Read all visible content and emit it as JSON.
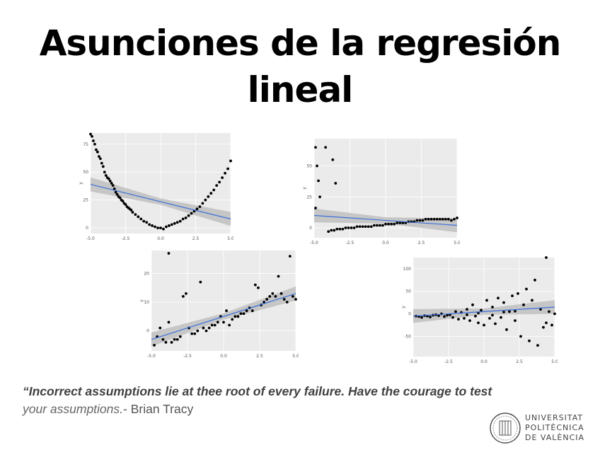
{
  "title": {
    "line1": "Asunciones de la regresión",
    "line2": "lineal"
  },
  "quote": {
    "part1": "“Incorrect assumptions lie at thee root of every failure. Have the courage to test",
    "part2": "your assumptions.",
    "part3": "- Brian Tracy"
  },
  "logo": {
    "line1": "UNIVERSITAT",
    "line2": "POLITÈCNICA",
    "line3": "DE VALÈNCIA",
    "icon": "upv-seal-icon"
  },
  "colors": {
    "fit_line": "#3a6fd8",
    "panel_bg": "#ebebeb",
    "band": "#bdbdbd",
    "points": "#000000"
  },
  "chart_data": [
    {
      "type": "scatter",
      "title": "",
      "xlabel": "",
      "ylabel": "y",
      "xlim": [
        -5,
        5
      ],
      "ylim": [
        -5,
        85
      ],
      "xticks": [
        "-5.0",
        "-2.5",
        "0.0",
        "2.5",
        "5.0"
      ],
      "yticks": [
        "0",
        "25",
        "50",
        "75"
      ],
      "fit": {
        "x": [
          -5,
          5
        ],
        "y": [
          39,
          8
        ]
      },
      "points": [
        [
          -5,
          84
        ],
        [
          -4.9,
          82
        ],
        [
          -4.8,
          78
        ],
        [
          -4.7,
          75
        ],
        [
          -4.6,
          70
        ],
        [
          -4.5,
          68
        ],
        [
          -4.4,
          64
        ],
        [
          -4.3,
          62
        ],
        [
          -4.2,
          58
        ],
        [
          -4.1,
          55
        ],
        [
          -4,
          50
        ],
        [
          -3.9,
          47
        ],
        [
          -3.8,
          45
        ],
        [
          -3.7,
          44
        ],
        [
          -3.6,
          42
        ],
        [
          -3.5,
          40
        ],
        [
          -3.4,
          38
        ],
        [
          -3.3,
          35
        ],
        [
          -3.2,
          32
        ],
        [
          -3.1,
          30
        ],
        [
          -3,
          28
        ],
        [
          -2.9,
          27
        ],
        [
          -2.8,
          25
        ],
        [
          -2.7,
          24
        ],
        [
          -2.6,
          22
        ],
        [
          -2.5,
          21
        ],
        [
          -2.4,
          19
        ],
        [
          -2.3,
          18
        ],
        [
          -2.2,
          17
        ],
        [
          -2.1,
          16
        ],
        [
          -2,
          14
        ],
        [
          -1.8,
          12
        ],
        [
          -1.6,
          10
        ],
        [
          -1.4,
          8
        ],
        [
          -1.2,
          6
        ],
        [
          -1,
          5
        ],
        [
          -0.8,
          3
        ],
        [
          -0.6,
          2
        ],
        [
          -0.4,
          1
        ],
        [
          -0.2,
          0
        ],
        [
          0,
          0
        ],
        [
          0.2,
          -1
        ],
        [
          0.4,
          1
        ],
        [
          0.6,
          2
        ],
        [
          0.8,
          3
        ],
        [
          1,
          4
        ],
        [
          1.2,
          5
        ],
        [
          1.4,
          6
        ],
        [
          1.6,
          8
        ],
        [
          1.8,
          9
        ],
        [
          2,
          11
        ],
        [
          2.2,
          13
        ],
        [
          2.4,
          15
        ],
        [
          2.6,
          17
        ],
        [
          2.8,
          19
        ],
        [
          3,
          22
        ],
        [
          3.2,
          25
        ],
        [
          3.4,
          28
        ],
        [
          3.6,
          31
        ],
        [
          3.8,
          34
        ],
        [
          4,
          38
        ],
        [
          4.2,
          41
        ],
        [
          4.4,
          45
        ],
        [
          4.6,
          49
        ],
        [
          4.8,
          53
        ],
        [
          5,
          60
        ]
      ]
    },
    {
      "type": "scatter",
      "title": "",
      "xlabel": "",
      "ylabel": "y",
      "xlim": [
        -5,
        5
      ],
      "ylim": [
        -8,
        72
      ],
      "xticks": [
        "-5.0",
        "-2.5",
        "0.0",
        "2.5",
        "5.0"
      ],
      "yticks": [
        "0",
        "25",
        "50"
      ],
      "fit": {
        "x": [
          -5,
          5
        ],
        "y": [
          10,
          2
        ]
      },
      "points": [
        [
          -4.9,
          65
        ],
        [
          -4.8,
          50
        ],
        [
          -4.7,
          38
        ],
        [
          -4.6,
          25
        ],
        [
          -4.9,
          16
        ],
        [
          -4.2,
          65
        ],
        [
          -3.7,
          55
        ],
        [
          -3.5,
          36
        ],
        [
          -4,
          -3
        ],
        [
          -3.8,
          -2
        ],
        [
          -3.6,
          -2
        ],
        [
          -3.4,
          -1
        ],
        [
          -3.2,
          -1
        ],
        [
          -3,
          -1
        ],
        [
          -2.8,
          0
        ],
        [
          -2.6,
          0
        ],
        [
          -2.4,
          0
        ],
        [
          -2.2,
          0
        ],
        [
          -2,
          1
        ],
        [
          -1.8,
          1
        ],
        [
          -1.6,
          1
        ],
        [
          -1.4,
          1
        ],
        [
          -1.2,
          1
        ],
        [
          -1,
          1
        ],
        [
          -0.8,
          2
        ],
        [
          -0.6,
          2
        ],
        [
          -0.4,
          2
        ],
        [
          -0.2,
          2
        ],
        [
          0,
          3
        ],
        [
          0.2,
          3
        ],
        [
          0.4,
          3
        ],
        [
          0.6,
          3
        ],
        [
          0.8,
          4
        ],
        [
          1,
          4
        ],
        [
          1.2,
          4
        ],
        [
          1.4,
          4
        ],
        [
          1.6,
          5
        ],
        [
          1.8,
          5
        ],
        [
          2,
          5
        ],
        [
          2.2,
          6
        ],
        [
          2.4,
          6
        ],
        [
          2.6,
          6
        ],
        [
          2.8,
          7
        ],
        [
          3,
          7
        ],
        [
          3.2,
          7
        ],
        [
          3.4,
          7
        ],
        [
          3.6,
          7
        ],
        [
          3.8,
          7
        ],
        [
          4,
          7
        ],
        [
          4.2,
          7
        ],
        [
          4.4,
          7
        ],
        [
          4.6,
          6
        ],
        [
          4.8,
          7
        ],
        [
          5,
          8
        ]
      ]
    },
    {
      "type": "scatter",
      "title": "",
      "xlabel": "",
      "ylabel": "y",
      "xlim": [
        -5,
        5
      ],
      "ylim": [
        -7,
        28
      ],
      "xticks": [
        "-5.0",
        "-2.5",
        "0.0",
        "2.5",
        "5.0"
      ],
      "yticks": [
        "0",
        "10",
        "20"
      ],
      "fit": {
        "x": [
          -5,
          5
        ],
        "y": [
          -3,
          13
        ]
      },
      "points": [
        [
          -4.8,
          -5
        ],
        [
          -4.6,
          -2
        ],
        [
          -4.4,
          1
        ],
        [
          -4.2,
          -3
        ],
        [
          -4,
          -4
        ],
        [
          -3.8,
          3
        ],
        [
          -3.6,
          -4
        ],
        [
          -3.4,
          -3
        ],
        [
          -3.2,
          -3
        ],
        [
          -3,
          -2
        ],
        [
          -2.8,
          12
        ],
        [
          -2.6,
          13
        ],
        [
          -2.4,
          1
        ],
        [
          -2.2,
          -1
        ],
        [
          -2,
          -1
        ],
        [
          -1.8,
          0
        ],
        [
          -1.6,
          17
        ],
        [
          -1.4,
          1
        ],
        [
          -1.2,
          0
        ],
        [
          -1,
          1
        ],
        [
          -0.8,
          2
        ],
        [
          -0.6,
          2
        ],
        [
          -0.4,
          3
        ],
        [
          -0.2,
          5
        ],
        [
          0,
          3
        ],
        [
          0.2,
          7
        ],
        [
          0.4,
          2
        ],
        [
          0.6,
          4
        ],
        [
          0.8,
          5
        ],
        [
          1,
          5
        ],
        [
          1.2,
          6
        ],
        [
          1.4,
          6
        ],
        [
          1.6,
          7
        ],
        [
          1.8,
          8
        ],
        [
          2,
          7
        ],
        [
          2.2,
          16
        ],
        [
          2.4,
          15
        ],
        [
          2.6,
          9
        ],
        [
          2.8,
          10
        ],
        [
          3,
          11
        ],
        [
          3.2,
          12
        ],
        [
          3.4,
          13
        ],
        [
          3.6,
          12
        ],
        [
          3.8,
          19
        ],
        [
          4,
          13
        ],
        [
          4.2,
          11
        ],
        [
          4.4,
          10
        ],
        [
          4.6,
          26
        ],
        [
          4.8,
          12
        ],
        [
          5,
          11
        ],
        [
          -3.8,
          27
        ]
      ]
    },
    {
      "type": "scatter",
      "title": "",
      "xlabel": "",
      "ylabel": "y",
      "xlim": [
        -5,
        5
      ],
      "ylim": [
        -95,
        125
      ],
      "xticks": [
        "-5.0",
        "-2.5",
        "0.0",
        "2.5",
        "5.0"
      ],
      "yticks": [
        "-50",
        "0",
        "50",
        "100"
      ],
      "fit": {
        "x": [
          -5,
          5
        ],
        "y": [
          -5,
          15
        ]
      },
      "points": [
        [
          -4.8,
          -5
        ],
        [
          -4.6,
          -6
        ],
        [
          -4.4,
          -8
        ],
        [
          -4.2,
          -4
        ],
        [
          -4,
          -5
        ],
        [
          -3.8,
          -7
        ],
        [
          -3.6,
          -3
        ],
        [
          -3.4,
          -2
        ],
        [
          -3.2,
          -4
        ],
        [
          -3,
          0
        ],
        [
          -2.8,
          -6
        ],
        [
          -2.6,
          -3
        ],
        [
          -2.4,
          -2
        ],
        [
          -2.2,
          -8
        ],
        [
          -2,
          5
        ],
        [
          -1.8,
          -12
        ],
        [
          -1.6,
          3
        ],
        [
          -1.4,
          -10
        ],
        [
          -1.2,
          10
        ],
        [
          -1,
          -15
        ],
        [
          -0.8,
          20
        ],
        [
          -0.6,
          -5
        ],
        [
          -0.4,
          -20
        ],
        [
          -0.2,
          8
        ],
        [
          0,
          -25
        ],
        [
          0.2,
          30
        ],
        [
          0.4,
          -10
        ],
        [
          0.6,
          15
        ],
        [
          0.8,
          -22
        ],
        [
          1,
          35
        ],
        [
          1.2,
          -8
        ],
        [
          1.4,
          25
        ],
        [
          1.6,
          -35
        ],
        [
          1.8,
          5
        ],
        [
          2,
          40
        ],
        [
          2.2,
          -15
        ],
        [
          2.4,
          45
        ],
        [
          2.6,
          -50
        ],
        [
          2.8,
          20
        ],
        [
          3,
          55
        ],
        [
          3.2,
          -60
        ],
        [
          3.4,
          30
        ],
        [
          3.6,
          75
        ],
        [
          3.8,
          -70
        ],
        [
          4,
          10
        ],
        [
          4.2,
          -30
        ],
        [
          4.4,
          -20
        ],
        [
          4.6,
          5
        ],
        [
          4.8,
          -25
        ],
        [
          5,
          0
        ],
        [
          4.4,
          125
        ],
        [
          -1.2,
          -2
        ],
        [
          -0.4,
          2
        ],
        [
          0.6,
          -3
        ],
        [
          1.4,
          4
        ],
        [
          2.2,
          6
        ]
      ]
    }
  ]
}
